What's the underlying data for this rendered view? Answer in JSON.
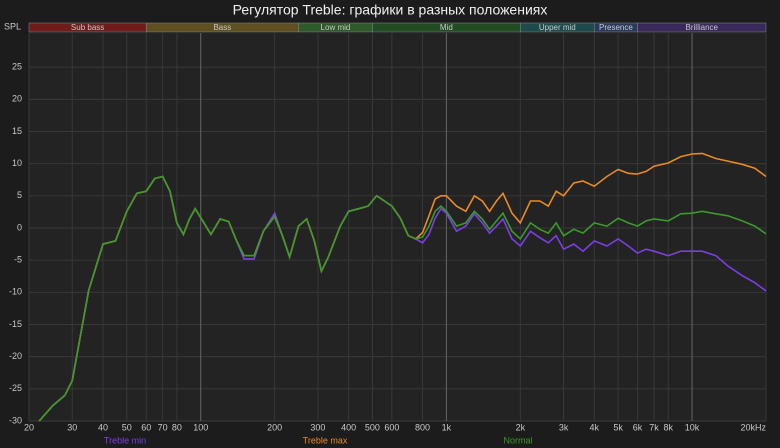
{
  "chart_data": {
    "type": "line",
    "title": "Регулятор Treble: графики в разных положениях",
    "ylabel": "SPL",
    "xscale": "log",
    "grid": true,
    "xlim": [
      20,
      20000
    ],
    "ylim": [
      -30,
      30
    ],
    "xticks": [
      20,
      30,
      40,
      50,
      60,
      70,
      80,
      100,
      200,
      300,
      400,
      500,
      600,
      800,
      {
        "value": 1000,
        "label": "1k"
      },
      {
        "value": 2000,
        "label": "2k"
      },
      {
        "value": 3000,
        "label": "3k"
      },
      {
        "value": 4000,
        "label": "4k"
      },
      {
        "value": 5000,
        "label": "5k"
      },
      {
        "value": 6000,
        "label": "6k"
      },
      {
        "value": 7000,
        "label": "7k"
      },
      {
        "value": 8000,
        "label": "8k"
      },
      {
        "value": 10000,
        "label": "10k"
      },
      {
        "value": 20000,
        "label": "20kHz"
      }
    ],
    "yticks": [
      -30,
      -25,
      -20,
      -15,
      -10,
      -5,
      0,
      5,
      10,
      15,
      20,
      25
    ],
    "bands": [
      {
        "name": "Sub bass",
        "from": 20,
        "to": 60,
        "color": "#6e1c1c"
      },
      {
        "name": "Bass",
        "from": 60,
        "to": 250,
        "color": "#5e5020"
      },
      {
        "name": "Low mid",
        "from": 250,
        "to": 500,
        "color": "#2f5a2a"
      },
      {
        "name": "Mid",
        "from": 500,
        "to": 2000,
        "color": "#224d24"
      },
      {
        "name": "Upper mid",
        "from": 2000,
        "to": 4000,
        "color": "#1e4c4c"
      },
      {
        "name": "Presence",
        "from": 4000,
        "to": 6000,
        "color": "#2a3a5c"
      },
      {
        "name": "Brilliance",
        "from": 6000,
        "to": 20000,
        "color": "#3a2a5c"
      }
    ],
    "x": [
      22,
      25,
      28,
      30,
      35,
      40,
      45,
      50,
      55,
      60,
      65,
      70,
      75,
      80,
      85,
      90,
      95,
      105,
      110,
      120,
      130,
      140,
      150,
      165,
      180,
      200,
      215,
      230,
      250,
      270,
      290,
      310,
      330,
      370,
      400,
      440,
      480,
      520,
      560,
      600,
      650,
      700,
      750,
      800,
      850,
      900,
      950,
      1000,
      1100,
      1200,
      1300,
      1400,
      1500,
      1600,
      1700,
      1850,
      2000,
      2200,
      2400,
      2600,
      2800,
      3000,
      3300,
      3600,
      4000,
      4500,
      5000,
      5500,
      6000,
      6500,
      7000,
      8000,
      9000,
      10000,
      11000,
      12500,
      14000,
      16000,
      18000,
      20000
    ],
    "series": [
      {
        "name": "Treble min",
        "color": "#7b3ee6",
        "values": [
          -30,
          -27.6,
          -26,
          -23.7,
          -9.7,
          -2.5,
          -2,
          2.6,
          5.4,
          5.7,
          7.7,
          8,
          5.7,
          0.8,
          -1,
          1.4,
          3,
          0.3,
          -1,
          1.4,
          1,
          -2,
          -4.8,
          -4.8,
          -0.5,
          2.3,
          -1.2,
          -4.5,
          0.3,
          1.4,
          -2,
          -6.7,
          -4.6,
          0.3,
          2.6,
          3,
          3.4,
          5,
          4.2,
          3.4,
          1.5,
          -1.2,
          -1.7,
          -2.3,
          -1,
          1.5,
          3,
          2.3,
          -0.5,
          0.3,
          2.2,
          0.8,
          -0.8,
          0.3,
          1.4,
          -1.7,
          -2.8,
          -0.5,
          -1.5,
          -2.3,
          -1.2,
          -3.3,
          -2.5,
          -3.6,
          -2,
          -2.8,
          -1.7,
          -2.8,
          -3.9,
          -3.3,
          -3.6,
          -4.3,
          -3.6,
          -3.6,
          -3.6,
          -4.3,
          -5.9,
          -7.4,
          -8.5,
          -9.8
        ]
      },
      {
        "name": "Treble max",
        "color": "#e8892a",
        "values": [
          -30,
          -27.6,
          -26,
          -23.7,
          -9.7,
          -2.5,
          -2,
          2.6,
          5.4,
          5.7,
          7.7,
          8,
          5.7,
          0.8,
          -1,
          1.4,
          3,
          0.3,
          -1,
          1.4,
          1,
          -2,
          -4.3,
          -4.3,
          -0.5,
          1.8,
          -1.2,
          -4.5,
          0.3,
          1.4,
          -2,
          -6.7,
          -4.6,
          0.3,
          2.6,
          3,
          3.4,
          5,
          4.2,
          3.4,
          1.5,
          -1.2,
          -1.7,
          -0.7,
          1.9,
          4.5,
          5,
          5,
          3.4,
          2.6,
          5,
          4.2,
          2.6,
          4.2,
          5.4,
          2.3,
          0.8,
          4.2,
          4.2,
          3.4,
          5.7,
          5,
          7,
          7.3,
          6.5,
          8,
          9.1,
          8.5,
          8.4,
          8.8,
          9.6,
          10.1,
          11.1,
          11.5,
          11.6,
          10.8,
          10.4,
          9.9,
          9.3,
          8
        ]
      },
      {
        "name": "Normal",
        "color": "#3a9a2a",
        "values": [
          -30,
          -27.6,
          -26,
          -23.7,
          -9.7,
          -2.5,
          -2,
          2.6,
          5.4,
          5.7,
          7.7,
          8,
          5.7,
          0.8,
          -1,
          1.4,
          3,
          0.3,
          -1,
          1.4,
          1,
          -2,
          -4.3,
          -4.3,
          -0.5,
          1.8,
          -1.2,
          -4.5,
          0.3,
          1.4,
          -2,
          -6.7,
          -4.6,
          0.3,
          2.6,
          3,
          3.4,
          5,
          4.2,
          3.4,
          1.5,
          -1.2,
          -1.7,
          -1.4,
          0.3,
          2.6,
          3.4,
          2.6,
          0.3,
          0.8,
          2.6,
          1.4,
          -0.2,
          1.1,
          2.3,
          -0.5,
          -1.7,
          0.8,
          -0.2,
          -0.8,
          0.8,
          -1.2,
          -0.2,
          -0.8,
          0.8,
          0.3,
          1.5,
          0.8,
          0.3,
          1.1,
          1.4,
          1.1,
          2.2,
          2.3,
          2.6,
          2.2,
          1.9,
          1.1,
          0.3,
          -0.9
        ]
      }
    ]
  }
}
